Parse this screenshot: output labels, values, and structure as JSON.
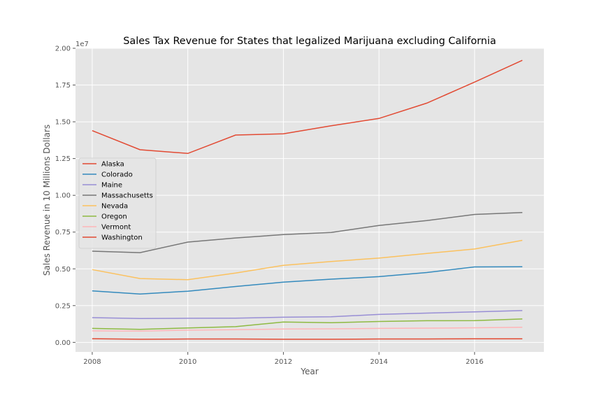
{
  "chart_data": {
    "type": "line",
    "title": "Sales Tax Revenue for States that legalized Marijuana excluding California",
    "xlabel": "Year",
    "ylabel": "Sales Revenue in 10 Millions Dollars",
    "y_offset_label": "1e7",
    "xlim": [
      2007.65,
      2017.45
    ],
    "ylim": [
      -650000,
      20000000
    ],
    "x_ticks": [
      2008,
      2010,
      2012,
      2014,
      2016
    ],
    "y_ticks": [
      0,
      2500000,
      5000000,
      7500000,
      10000000,
      12500000,
      15000000,
      17500000,
      20000000
    ],
    "y_tick_labels": [
      "0.00",
      "0.25",
      "0.50",
      "0.75",
      "1.00",
      "1.25",
      "1.50",
      "1.75",
      "2.00"
    ],
    "grid": true,
    "legend_position": "center-left",
    "x": [
      2008,
      2009,
      2010,
      2011,
      2012,
      2013,
      2014,
      2015,
      2016,
      2017
    ],
    "series": [
      {
        "name": "Alaska",
        "color": "#E24A33",
        "values": [
          14400000,
          13100000,
          12850000,
          14100000,
          14180000,
          14730000,
          15230000,
          16270000,
          17700000,
          19180000
        ]
      },
      {
        "name": "Colorado",
        "color": "#348ABD",
        "values": [
          3500000,
          3290000,
          3480000,
          3800000,
          4100000,
          4300000,
          4470000,
          4750000,
          5130000,
          5140000
        ]
      },
      {
        "name": "Maine",
        "color": "#988ED5",
        "values": [
          1680000,
          1620000,
          1640000,
          1650000,
          1710000,
          1740000,
          1900000,
          1990000,
          2070000,
          2160000
        ]
      },
      {
        "name": "Massachusetts",
        "color": "#777777",
        "values": [
          6200000,
          6100000,
          6820000,
          7100000,
          7330000,
          7470000,
          7950000,
          8280000,
          8700000,
          8830000
        ]
      },
      {
        "name": "Nevada",
        "color": "#FBC15E",
        "values": [
          4950000,
          4340000,
          4260000,
          4710000,
          5240000,
          5500000,
          5730000,
          6050000,
          6350000,
          6940000
        ]
      },
      {
        "name": "Oregon",
        "color": "#8EBA42",
        "values": [
          950000,
          880000,
          980000,
          1070000,
          1380000,
          1340000,
          1420000,
          1470000,
          1480000,
          1590000
        ]
      },
      {
        "name": "Vermont",
        "color": "#FFB5B8",
        "values": [
          780000,
          770000,
          830000,
          860000,
          910000,
          920000,
          950000,
          970000,
          990000,
          1030000
        ]
      },
      {
        "name": "Washington",
        "color": "#E24A33",
        "values": [
          250000,
          210000,
          230000,
          230000,
          210000,
          210000,
          230000,
          230000,
          240000,
          240000
        ]
      }
    ]
  }
}
